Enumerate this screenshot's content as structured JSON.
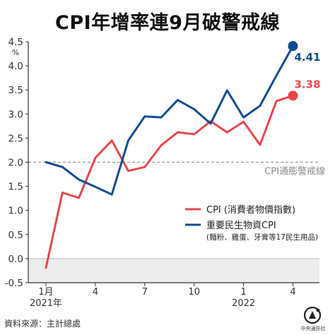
{
  "header": {
    "title": "CPI年增率連9月破警戒線"
  },
  "footer": {
    "source": "資料來源：主計總處",
    "logo_text": "中央通訊社",
    "logo_mark": "CNA"
  },
  "chart_data": {
    "type": "line",
    "title": "CPI年增率連9月破警戒線",
    "ylabel": "%",
    "ylim": [
      -0.5,
      4.5
    ],
    "yticks": [
      -0.5,
      0.0,
      0.5,
      1.0,
      1.5,
      2.0,
      2.5,
      3.0,
      3.5,
      4.0,
      4.5
    ],
    "ytick_labels": [
      "-0.5",
      "0.0",
      "0.5",
      "1.0",
      "1.5",
      "2.0",
      "2.5",
      "3.0",
      "3.5",
      "4.0",
      "4.5"
    ],
    "ylabel_unit": "%",
    "x_count": 16,
    "xticks": [
      {
        "index": 0,
        "label": "1月",
        "sub": "2021年"
      },
      {
        "index": 3,
        "label": "4",
        "sub": ""
      },
      {
        "index": 6,
        "label": "7",
        "sub": ""
      },
      {
        "index": 9,
        "label": "10",
        "sub": ""
      },
      {
        "index": 12,
        "label": "1",
        "sub": "2022"
      },
      {
        "index": 15,
        "label": "4",
        "sub": ""
      }
    ],
    "x": [
      "2021-01",
      "2021-02",
      "2021-03",
      "2021-04",
      "2021-05",
      "2021-06",
      "2021-07",
      "2021-08",
      "2021-09",
      "2021-10",
      "2021-11",
      "2021-12",
      "2022-01",
      "2022-02",
      "2022-03",
      "2022-04"
    ],
    "series": [
      {
        "name": "CPI (消費者物價指數)",
        "color": "#e8474e",
        "values": [
          -0.19,
          1.37,
          1.26,
          2.09,
          2.45,
          1.82,
          1.9,
          2.35,
          2.62,
          2.58,
          2.85,
          2.62,
          2.84,
          2.36,
          3.27,
          3.38
        ],
        "end_label": "3.38"
      },
      {
        "name": "重要民生物資CPI",
        "note": "(麵粉、雞蛋、牙膏等17民生用品)",
        "color": "#0f4c8f",
        "values": [
          2.0,
          1.9,
          1.64,
          1.49,
          1.33,
          2.45,
          2.95,
          2.93,
          3.29,
          3.1,
          2.8,
          3.49,
          2.93,
          3.17,
          3.8,
          4.41
        ],
        "end_label": "4.41"
      }
    ],
    "reference_line": {
      "value": 2.0,
      "label": "CPI通膨警戒線"
    },
    "negative_region_shaded": true,
    "grid": false,
    "legend": "right-middle"
  }
}
